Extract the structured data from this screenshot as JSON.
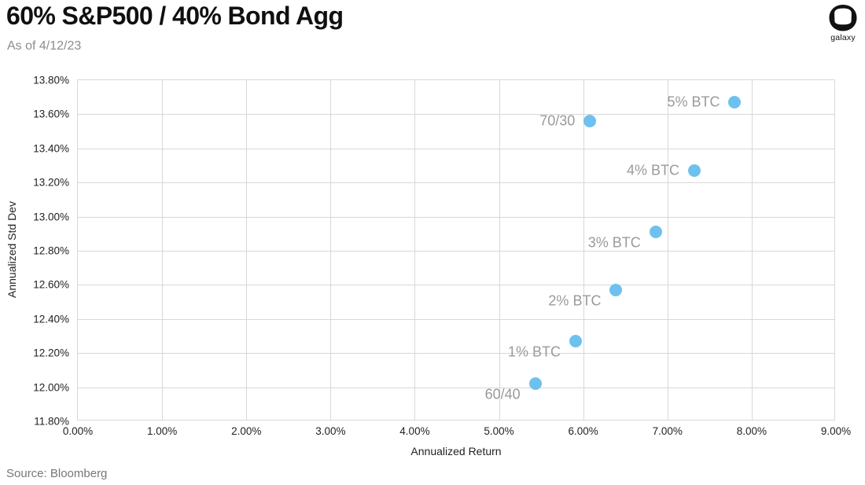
{
  "header": {
    "title": "60% S&P500 / 40% Bond Agg",
    "subtitle": "As of 4/12/23"
  },
  "logo": {
    "brand": "galaxy"
  },
  "chart_data": {
    "type": "scatter",
    "title": "60% S&P500 / 40% Bond Agg",
    "xlabel": "Annualized Return",
    "ylabel": "Annualized Std Dev",
    "xlim": [
      0,
      9
    ],
    "ylim": [
      11.8,
      13.8
    ],
    "x_tick_labels": [
      "0.00%",
      "1.00%",
      "2.00%",
      "3.00%",
      "4.00%",
      "5.00%",
      "6.00%",
      "7.00%",
      "8.00%",
      "9.00%"
    ],
    "y_tick_labels": [
      "11.80%",
      "12.00%",
      "12.20%",
      "12.40%",
      "12.60%",
      "12.80%",
      "13.00%",
      "13.20%",
      "13.40%",
      "13.60%",
      "13.80%"
    ],
    "grid": true,
    "legend": false,
    "points": [
      {
        "label": "60/40",
        "x": 5.43,
        "y": 12.02,
        "label_pos": "lower-left"
      },
      {
        "label": "1% BTC",
        "x": 5.91,
        "y": 12.27,
        "label_pos": "lower-left"
      },
      {
        "label": "2% BTC",
        "x": 6.39,
        "y": 12.57,
        "label_pos": "lower-left"
      },
      {
        "label": "3% BTC",
        "x": 6.86,
        "y": 12.91,
        "label_pos": "lower-left"
      },
      {
        "label": "70/30",
        "x": 6.08,
        "y": 13.56,
        "label_pos": "left"
      },
      {
        "label": "4% BTC",
        "x": 7.32,
        "y": 13.27,
        "label_pos": "left"
      },
      {
        "label": "5% BTC",
        "x": 7.8,
        "y": 13.67,
        "label_pos": "left"
      }
    ]
  },
  "colors": {
    "dot": "#6EC1EE",
    "grid": "#D8D8D8",
    "point_label": "#9A9A9A",
    "axis_text": "#222222",
    "subtitle_text": "#8C8C8C",
    "source_text": "#777777",
    "logo": "#111111"
  },
  "footer": {
    "source": "Source: Bloomberg"
  }
}
